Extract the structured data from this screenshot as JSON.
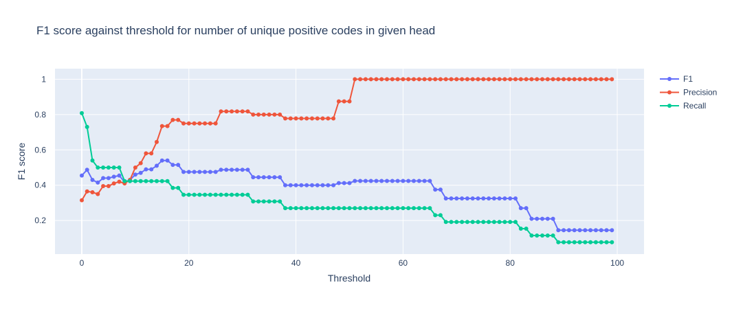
{
  "chart_data": {
    "type": "line",
    "title": "F1 score against threshold for number of unique positive codes in given head",
    "xlabel": "Threshold",
    "ylabel": "F1 score",
    "xlim": [
      -5,
      105
    ],
    "ylim": [
      0.01,
      1.06
    ],
    "xticks": [
      0,
      20,
      40,
      60,
      80,
      100
    ],
    "yticks": [
      0.2,
      0.4,
      0.6,
      0.8,
      1
    ],
    "ytick_labels": [
      "0.2",
      "0.4",
      "0.6",
      "0.8",
      "1"
    ],
    "legend_position": "top-right",
    "grid": true,
    "x": [
      0,
      1,
      2,
      3,
      4,
      5,
      6,
      7,
      8,
      9,
      10,
      11,
      12,
      13,
      14,
      15,
      16,
      17,
      18,
      19,
      20,
      21,
      22,
      23,
      24,
      25,
      26,
      27,
      28,
      29,
      30,
      31,
      32,
      33,
      34,
      35,
      36,
      37,
      38,
      39,
      40,
      41,
      42,
      43,
      44,
      45,
      46,
      47,
      48,
      49,
      50,
      51,
      52,
      53,
      54,
      55,
      56,
      57,
      58,
      59,
      60,
      61,
      62,
      63,
      64,
      65,
      66,
      67,
      68,
      69,
      70,
      71,
      72,
      73,
      74,
      75,
      76,
      77,
      78,
      79,
      80,
      81,
      82,
      83,
      84,
      85,
      86,
      87,
      88,
      89,
      90,
      91,
      92,
      93,
      94,
      95,
      96,
      97,
      98,
      99
    ],
    "series": [
      {
        "name": "F1",
        "color": "#636efa",
        "values": [
          0.455,
          0.487,
          0.43,
          0.415,
          0.44,
          0.44,
          0.448,
          0.455,
          0.418,
          0.43,
          0.46,
          0.47,
          0.49,
          0.49,
          0.51,
          0.54,
          0.54,
          0.515,
          0.515,
          0.475,
          0.475,
          0.475,
          0.475,
          0.475,
          0.475,
          0.475,
          0.487,
          0.487,
          0.487,
          0.487,
          0.487,
          0.487,
          0.445,
          0.445,
          0.445,
          0.445,
          0.445,
          0.445,
          0.4,
          0.4,
          0.4,
          0.4,
          0.4,
          0.4,
          0.4,
          0.4,
          0.4,
          0.4,
          0.412,
          0.412,
          0.412,
          0.424,
          0.424,
          0.424,
          0.424,
          0.424,
          0.424,
          0.424,
          0.424,
          0.424,
          0.424,
          0.424,
          0.424,
          0.424,
          0.424,
          0.424,
          0.375,
          0.375,
          0.325,
          0.325,
          0.325,
          0.325,
          0.325,
          0.325,
          0.325,
          0.325,
          0.325,
          0.325,
          0.325,
          0.325,
          0.325,
          0.325,
          0.27,
          0.27,
          0.21,
          0.21,
          0.21,
          0.21,
          0.21,
          0.145,
          0.145,
          0.145,
          0.145,
          0.145,
          0.145,
          0.145,
          0.145,
          0.145,
          0.145,
          0.145
        ]
      },
      {
        "name": "Precision",
        "color": "#ef553b",
        "values": [
          0.315,
          0.365,
          0.36,
          0.35,
          0.395,
          0.395,
          0.41,
          0.42,
          0.41,
          0.43,
          0.5,
          0.525,
          0.58,
          0.58,
          0.645,
          0.735,
          0.735,
          0.77,
          0.77,
          0.75,
          0.75,
          0.75,
          0.75,
          0.75,
          0.75,
          0.75,
          0.818,
          0.818,
          0.818,
          0.818,
          0.818,
          0.818,
          0.8,
          0.8,
          0.8,
          0.8,
          0.8,
          0.8,
          0.778,
          0.778,
          0.778,
          0.778,
          0.778,
          0.778,
          0.778,
          0.778,
          0.778,
          0.778,
          0.875,
          0.875,
          0.875,
          1,
          1,
          1,
          1,
          1,
          1,
          1,
          1,
          1,
          1,
          1,
          1,
          1,
          1,
          1,
          1,
          1,
          1,
          1,
          1,
          1,
          1,
          1,
          1,
          1,
          1,
          1,
          1,
          1,
          1,
          1,
          1,
          1,
          1,
          1,
          1,
          1,
          1,
          1,
          1,
          1,
          1,
          1,
          1,
          1,
          1,
          1,
          1,
          1
        ]
      },
      {
        "name": "Recall",
        "color": "#00cc96",
        "values": [
          0.808,
          0.73,
          0.54,
          0.5,
          0.5,
          0.5,
          0.5,
          0.5,
          0.423,
          0.423,
          0.423,
          0.423,
          0.423,
          0.423,
          0.423,
          0.423,
          0.423,
          0.385,
          0.385,
          0.346,
          0.346,
          0.346,
          0.346,
          0.346,
          0.346,
          0.346,
          0.346,
          0.346,
          0.346,
          0.346,
          0.346,
          0.346,
          0.308,
          0.308,
          0.308,
          0.308,
          0.308,
          0.308,
          0.27,
          0.27,
          0.27,
          0.27,
          0.27,
          0.27,
          0.27,
          0.27,
          0.27,
          0.27,
          0.27,
          0.27,
          0.27,
          0.27,
          0.27,
          0.27,
          0.27,
          0.27,
          0.27,
          0.27,
          0.27,
          0.27,
          0.27,
          0.27,
          0.27,
          0.27,
          0.27,
          0.27,
          0.23,
          0.23,
          0.192,
          0.192,
          0.192,
          0.192,
          0.192,
          0.192,
          0.192,
          0.192,
          0.192,
          0.192,
          0.192,
          0.192,
          0.192,
          0.192,
          0.154,
          0.154,
          0.115,
          0.115,
          0.115,
          0.115,
          0.115,
          0.077,
          0.077,
          0.077,
          0.077,
          0.077,
          0.077,
          0.077,
          0.077,
          0.077,
          0.077,
          0.077
        ]
      }
    ]
  }
}
